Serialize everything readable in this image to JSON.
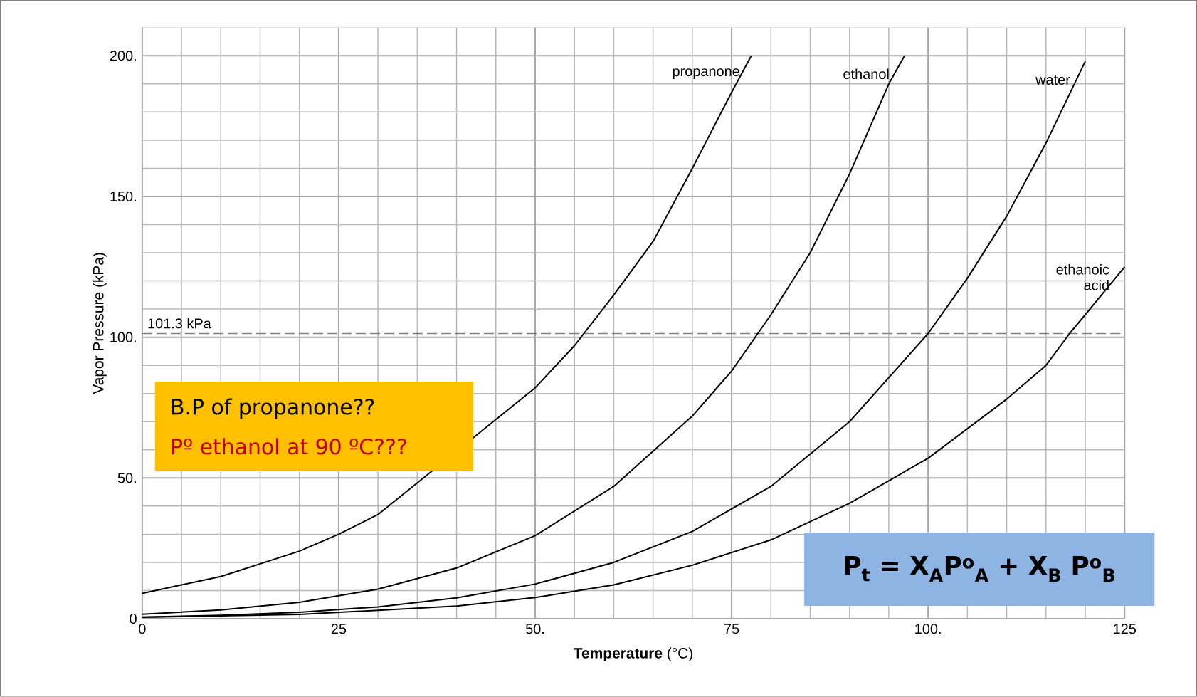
{
  "chart_data": {
    "type": "line",
    "xlabel": "**Temperature** (°C)",
    "ylabel": "Vapor Pressure (kPa)",
    "xlim": [
      0,
      125
    ],
    "ylim": [
      0,
      210
    ],
    "xticks": [
      0,
      25,
      {
        "value": 50,
        "label": "50."
      },
      75,
      {
        "value": 100,
        "label": "100."
      },
      125
    ],
    "yticks": [
      0,
      {
        "value": 50,
        "label": "50."
      },
      {
        "value": 100,
        "label": "100."
      },
      {
        "value": 150,
        "label": "150."
      },
      {
        "value": 200,
        "label": "200."
      }
    ],
    "grid": true,
    "marker": "none",
    "line_style": "solid",
    "series": [
      {
        "name": "propanone",
        "color": "#000000",
        "x": [
          0,
          10,
          20,
          25,
          30,
          40,
          50,
          55,
          60,
          65,
          70,
          75,
          77.5
        ],
        "values": [
          9,
          15,
          24,
          30,
          37,
          null,
          82,
          97,
          115,
          134,
          160,
          187,
          200
        ]
      },
      {
        "name": "ethanol",
        "color": "#000000",
        "x": [
          0,
          10,
          20,
          30,
          40,
          50,
          60,
          70,
          75,
          80,
          85,
          90,
          95,
          97
        ],
        "values": [
          1.6,
          3.1,
          5.8,
          10.5,
          18,
          29.5,
          47,
          72,
          88,
          108,
          130,
          158,
          190,
          200
        ]
      },
      {
        "name": "water",
        "color": "#000000",
        "x": [
          0,
          10,
          20,
          30,
          40,
          50,
          60,
          70,
          80,
          90,
          100,
          105,
          110,
          115,
          120
        ],
        "values": [
          0.6,
          1.2,
          2.3,
          4.2,
          7.4,
          12.3,
          20,
          31,
          47,
          70,
          101.3,
          121,
          143,
          169,
          198
        ]
      },
      {
        "name": "ethanoic acid",
        "color": "#000000",
        "x": [
          0,
          20,
          40,
          50,
          60,
          70,
          80,
          90,
          100,
          110,
          115,
          118,
          120,
          125
        ],
        "values": [
          0.5,
          1.5,
          4.5,
          7.5,
          12,
          19,
          28,
          41,
          57,
          78,
          90,
          101.3,
          108,
          125
        ]
      }
    ],
    "ref_lines": [
      {
        "axis": "y",
        "value": 101.3,
        "label": "101.3 kPa",
        "color": "#808080",
        "line_style": "dashed"
      }
    ],
    "annotations": [
      "B.P of propanone??",
      "Pº ethanol at 90 ºC???",
      "P$_{t}$ = X$_{A}$P$^{o}$$_{A}$ + X$_{B}$ P$^{o}$$_{B}$"
    ]
  }
}
